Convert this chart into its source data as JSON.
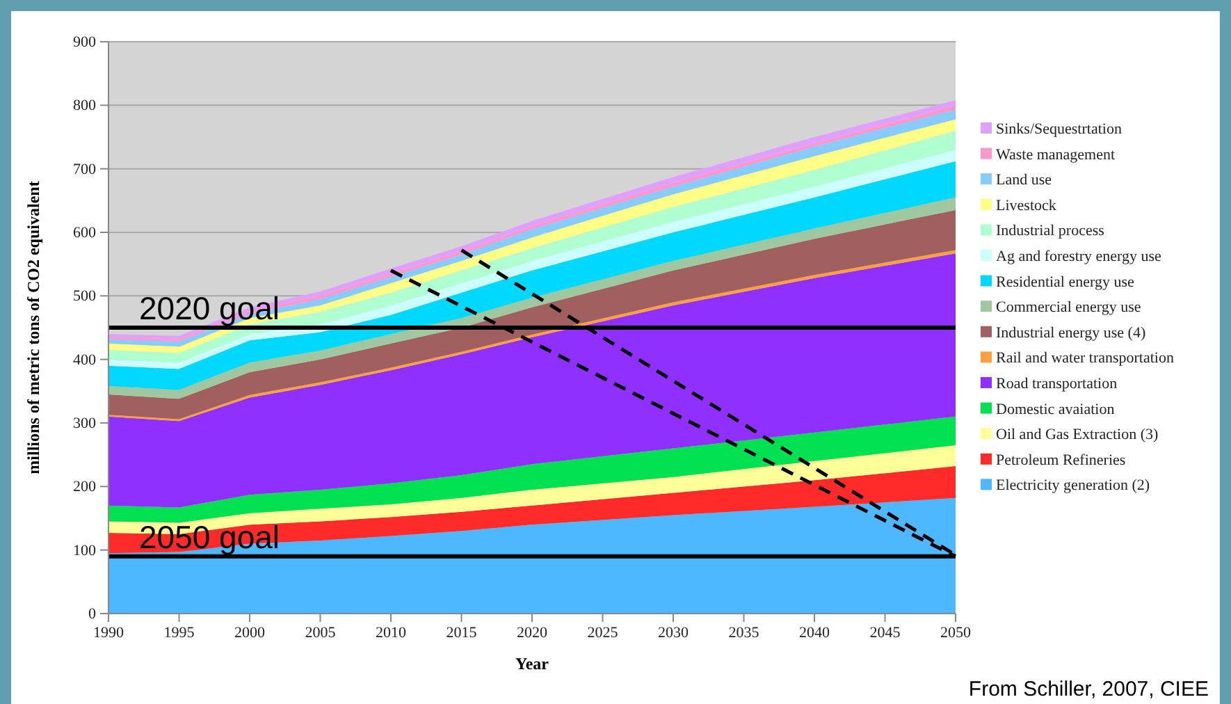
{
  "chart_data": {
    "type": "area",
    "stacked": true,
    "xlabel": "Year",
    "ylabel": "millions of metric tons of CO2 equivalent",
    "x": [
      1990,
      1995,
      2000,
      2005,
      2010,
      2015,
      2020,
      2030,
      2040,
      2050
    ],
    "xlim": [
      1990,
      2050
    ],
    "xticks": [
      1990,
      1995,
      2000,
      2005,
      2010,
      2015,
      2020,
      2025,
      2030,
      2035,
      2040,
      2045,
      2050
    ],
    "ylim": [
      0,
      900
    ],
    "yticks": [
      0,
      100,
      200,
      300,
      400,
      500,
      600,
      700,
      800,
      900
    ],
    "grid": "y",
    "legend": "right",
    "series": [
      {
        "name": "Electricity generation (2)",
        "color": "#4db8ff",
        "values": [
          95,
          97,
          110,
          115,
          122,
          130,
          140,
          155,
          168,
          182
        ]
      },
      {
        "name": "Petroleum Refineries",
        "color": "#ff2a2a",
        "values": [
          32,
          28,
          30,
          30,
          30,
          30,
          30,
          35,
          42,
          50
        ]
      },
      {
        "name": "Oil and Gas Extraction (3)",
        "color": "#ffff99",
        "values": [
          18,
          18,
          18,
          20,
          20,
          22,
          25,
          25,
          30,
          33
        ]
      },
      {
        "name": "Domestic avaiation",
        "color": "#00e050",
        "values": [
          25,
          24,
          29,
          30,
          33,
          36,
          40,
          45,
          45,
          45
        ]
      },
      {
        "name": "Road transportation",
        "color": "#9030ff",
        "values": [
          140,
          136,
          153,
          165,
          178,
          190,
          200,
          225,
          243,
          257
        ]
      },
      {
        "name": "Rail and water transportation",
        "color": "#ffa040",
        "values": [
          3,
          3,
          4,
          4,
          4,
          4,
          4,
          5,
          5,
          5
        ]
      },
      {
        "name": "Industrial  energy use (4)",
        "color": "#a06060",
        "values": [
          32,
          32,
          36,
          36,
          38,
          38,
          43,
          50,
          57,
          63
        ]
      },
      {
        "name": "Commercial energy use",
        "color": "#a0c8a0",
        "values": [
          13,
          14,
          15,
          14,
          15,
          15,
          15,
          15,
          16,
          20
        ]
      },
      {
        "name": "Residential energy use",
        "color": "#00d8ff",
        "values": [
          32,
          33,
          35,
          29,
          30,
          40,
          43,
          45,
          49,
          57
        ]
      },
      {
        "name": "Ag and forestry energy use",
        "color": "#ccffff",
        "values": [
          10,
          10,
          10,
          12,
          15,
          15,
          15,
          17,
          17,
          18
        ]
      },
      {
        "name": "Industrial process",
        "color": "#b0ffd0",
        "values": [
          15,
          15,
          15,
          20,
          20,
          20,
          20,
          23,
          26,
          30
        ]
      },
      {
        "name": "Livestock",
        "color": "#ffff88",
        "values": [
          10,
          10,
          10,
          10,
          15,
          15,
          17,
          20,
          22,
          18
        ]
      },
      {
        "name": "Land use",
        "color": "#88ccff",
        "values": [
          7,
          8,
          7,
          10,
          10,
          10,
          13,
          12,
          15,
          15
        ]
      },
      {
        "name": "Waste management",
        "color": "#ff99cc",
        "values": [
          3,
          4,
          4,
          5,
          5,
          5,
          5,
          6,
          5,
          7
        ]
      },
      {
        "name": "Sinks/Sequestrtation",
        "color": "#e0a0ff",
        "values": [
          5,
          5,
          6,
          7,
          8,
          8,
          8,
          9,
          10,
          8
        ]
      },
      {
        "type": "line",
        "color": "#000000",
        "line_style": "dashed",
        "x": [
          2010,
          2050
        ],
        "values": [
          540,
          90
        ]
      },
      {
        "type": "line",
        "color": "#000000",
        "line_style": "dashed",
        "x": [
          2015,
          2050
        ],
        "values": [
          572,
          92
        ]
      }
    ],
    "ref_lines": [
      {
        "axis": "y",
        "value": 450,
        "label": "2020 goal",
        "color": "#000000"
      },
      {
        "axis": "y",
        "value": 90,
        "label": "2050 goal",
        "color": "#000000"
      }
    ],
    "annotations": [
      "From Schiller, 2007, CIEE"
    ]
  }
}
